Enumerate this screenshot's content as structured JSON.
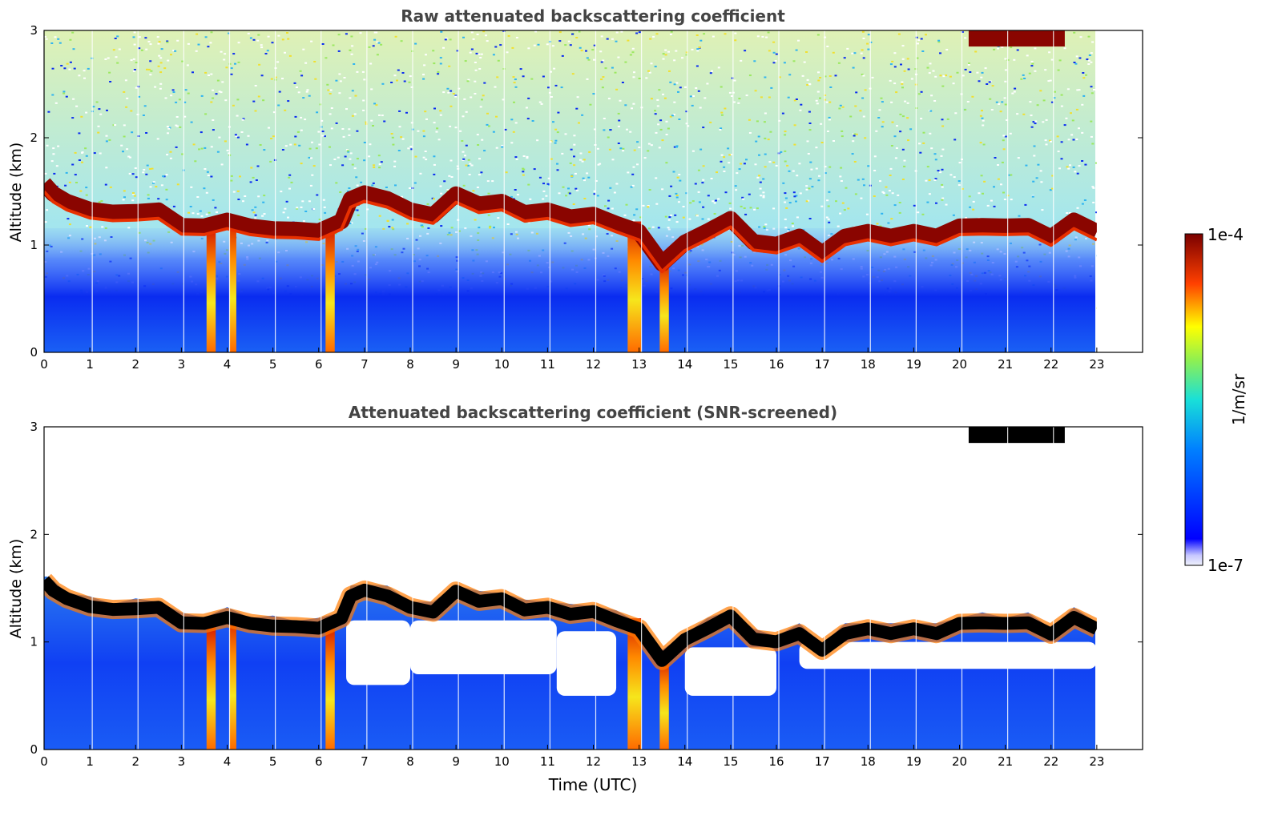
{
  "chart_data": [
    {
      "type": "heatmap",
      "title": "Raw attenuated backscattering coefficient",
      "xlabel": "",
      "ylabel": "Altitude (km)",
      "xlim": [
        0,
        24
      ],
      "ylim": [
        0,
        3
      ],
      "x_ticks": [
        "0",
        "1",
        "2",
        "3",
        "4",
        "5",
        "6",
        "7",
        "8",
        "9",
        "10",
        "11",
        "12",
        "13",
        "14",
        "15",
        "16",
        "17",
        "18",
        "19",
        "20",
        "21",
        "22",
        "23"
      ],
      "y_ticks": [
        "0",
        "1",
        "2",
        "3"
      ],
      "data_end_time": 23,
      "cloud_base_km": [
        [
          0.0,
          1.55
        ],
        [
          0.2,
          1.5
        ],
        [
          0.5,
          1.38
        ],
        [
          1.0,
          1.35
        ],
        [
          1.5,
          1.28
        ],
        [
          2.0,
          1.33
        ],
        [
          2.5,
          1.3
        ],
        [
          3.0,
          1.2
        ],
        [
          3.5,
          1.15
        ],
        [
          4.0,
          1.25
        ],
        [
          4.5,
          1.15
        ],
        [
          5.0,
          1.17
        ],
        [
          5.5,
          1.12
        ],
        [
          6.0,
          1.15
        ],
        [
          6.5,
          1.2
        ],
        [
          6.7,
          1.45
        ],
        [
          7.0,
          1.46
        ],
        [
          7.5,
          1.45
        ],
        [
          8.0,
          1.3
        ],
        [
          8.5,
          1.3
        ],
        [
          9.0,
          1.45
        ],
        [
          9.5,
          1.4
        ],
        [
          10.0,
          1.38
        ],
        [
          10.5,
          1.32
        ],
        [
          11.0,
          1.3
        ],
        [
          11.5,
          1.28
        ],
        [
          12.0,
          1.26
        ],
        [
          12.5,
          1.22
        ],
        [
          13.0,
          1.1
        ],
        [
          13.5,
          0.85
        ],
        [
          14.0,
          1.0
        ],
        [
          14.5,
          1.15
        ],
        [
          15.0,
          1.22
        ],
        [
          15.5,
          1.05
        ],
        [
          16.0,
          0.98
        ],
        [
          16.5,
          1.1
        ],
        [
          17.0,
          0.9
        ],
        [
          17.5,
          1.1
        ],
        [
          18.0,
          1.1
        ],
        [
          18.5,
          1.1
        ],
        [
          19.0,
          1.1
        ],
        [
          19.5,
          1.1
        ],
        [
          20.0,
          1.15
        ],
        [
          20.5,
          1.2
        ],
        [
          21.0,
          1.15
        ],
        [
          21.5,
          1.2
        ],
        [
          22.0,
          1.05
        ],
        [
          22.5,
          1.25
        ],
        [
          23.0,
          1.1
        ]
      ],
      "high_cloud": {
        "x_range": [
          20.2,
          22.3
        ],
        "base_km": 2.85
      },
      "precip_shafts": [
        {
          "x_range": [
            3.55,
            3.75
          ]
        },
        {
          "x_range": [
            4.05,
            4.2
          ]
        },
        {
          "x_range": [
            6.15,
            6.35
          ]
        },
        {
          "x_range": [
            12.75,
            13.05
          ]
        },
        {
          "x_range": [
            13.45,
            13.65
          ]
        }
      ]
    },
    {
      "type": "heatmap",
      "title": "Attenuated backscattering coefficient (SNR-screened)",
      "xlabel": "Time (UTC)",
      "ylabel": "Altitude (km)",
      "xlim": [
        0,
        24
      ],
      "ylim": [
        0,
        3
      ],
      "x_ticks": [
        "0",
        "1",
        "2",
        "3",
        "4",
        "5",
        "6",
        "7",
        "8",
        "9",
        "10",
        "11",
        "12",
        "13",
        "14",
        "15",
        "16",
        "17",
        "18",
        "19",
        "20",
        "21",
        "22",
        "23"
      ],
      "y_ticks": [
        "0",
        "1",
        "2",
        "3"
      ],
      "data_end_time": 23,
      "screened_gaps": [
        {
          "x_range": [
            6.6,
            8.0
          ],
          "y_range": [
            0.6,
            1.2
          ]
        },
        {
          "x_range": [
            8.0,
            11.2
          ],
          "y_range": [
            0.7,
            1.2
          ]
        },
        {
          "x_range": [
            11.2,
            12.5
          ],
          "y_range": [
            0.5,
            1.1
          ]
        },
        {
          "x_range": [
            14.0,
            16.0
          ],
          "y_range": [
            0.5,
            0.95
          ]
        },
        {
          "x_range": [
            16.5,
            23.0
          ],
          "y_range": [
            0.75,
            1.0
          ]
        }
      ]
    }
  ],
  "colorbar": {
    "label": "1/m/sr",
    "max_label": "1e-4",
    "min_label": "1e-7",
    "scale": "log"
  },
  "colors": {
    "low": "#0a1cf5",
    "mid": "#1fa3f0",
    "high": "#f2e81e",
    "peak": "#7a0000",
    "screened_core": "#000000"
  }
}
